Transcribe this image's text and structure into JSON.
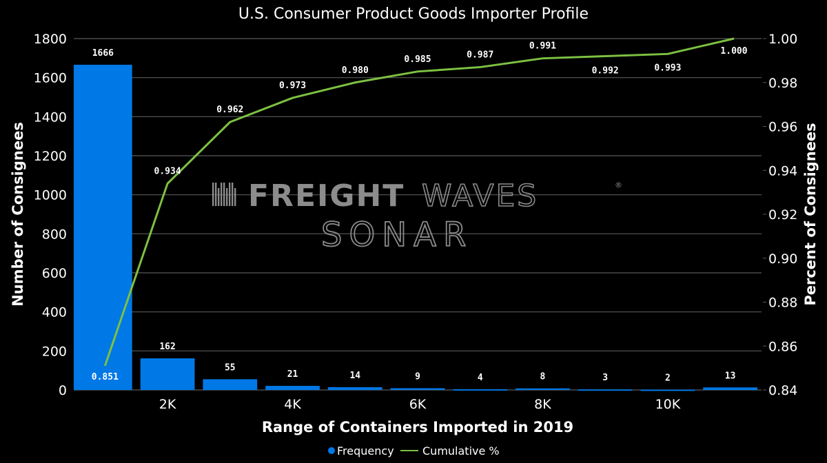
{
  "chart_data": {
    "type": "bar",
    "title": "U.S. Consumer Product Goods Importer Profile",
    "xlabel": "Range of Containers Imported in 2019",
    "ylabel": "Number of Consignees",
    "y2label": "Percent of Consignees",
    "ylim": [
      0,
      1800
    ],
    "y2lim": [
      0.84,
      1.0
    ],
    "yticks": [
      "0",
      "200",
      "400",
      "600",
      "800",
      "1000",
      "1200",
      "1400",
      "1600",
      "1800"
    ],
    "y2ticks": [
      "0.84",
      "0.86",
      "0.88",
      "0.90",
      "0.92",
      "0.94",
      "0.96",
      "0.98",
      "1.00"
    ],
    "xtick_labels": [
      {
        "after_bar": 1,
        "label": "2K"
      },
      {
        "after_bar": 3,
        "label": "4K"
      },
      {
        "after_bar": 5,
        "label": "6K"
      },
      {
        "after_bar": 7,
        "label": "8K"
      },
      {
        "after_bar": 9,
        "label": "10K"
      }
    ],
    "grid": true,
    "legend_position": "bottom-center",
    "series": [
      {
        "name": "Frequency",
        "type": "bar",
        "axis": "left",
        "color": "#0078e6",
        "values": [
          1666,
          162,
          55,
          21,
          14,
          9,
          4,
          8,
          3,
          2,
          13
        ],
        "labels": [
          "1666",
          "162",
          "55",
          "21",
          "14",
          "9",
          "4",
          "8",
          "3",
          "2",
          "13"
        ]
      },
      {
        "name": "Cumulative %",
        "type": "line",
        "axis": "right",
        "color": "#7dc142",
        "values": [
          0.851,
          0.934,
          0.962,
          0.973,
          0.98,
          0.985,
          0.987,
          0.991,
          0.992,
          0.993,
          1.0
        ],
        "labels": [
          "0.851",
          "0.934",
          "0.962",
          "0.973",
          "0.980",
          "0.985",
          "0.987",
          "0.991",
          "0.992",
          "0.993",
          "1.000"
        ]
      }
    ]
  },
  "watermark": {
    "line1_bold": "FREIGHT",
    "line1_light": "WAVES",
    "registered": "®",
    "line2": "SONAR"
  },
  "colors": {
    "background": "#000000",
    "grid": "#5a5a5a",
    "bar": "#0078e6",
    "line": "#7dc142",
    "watermark": "#8c8c8c"
  }
}
